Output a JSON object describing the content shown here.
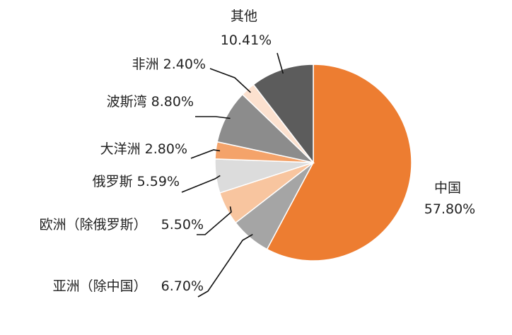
{
  "chart_data": {
    "type": "pie",
    "title": "",
    "start_angle_deg": 0,
    "direction": "clockwise",
    "slices": [
      {
        "label": "中国",
        "value_text": "57.80%",
        "value": 57.8,
        "color": "#ED7D31"
      },
      {
        "label": "亚洲（除中国）",
        "value_text": "6.70%",
        "value": 6.7,
        "color": "#A5A5A5"
      },
      {
        "label": "欧洲（除俄罗斯）",
        "value_text": "5.50%",
        "value": 5.5,
        "color": "#F8C59F"
      },
      {
        "label": "俄罗斯",
        "value_text": "5.59%",
        "value": 5.59,
        "color": "#DCDCDC"
      },
      {
        "label": "大洋洲",
        "value_text": "2.80%",
        "value": 2.8,
        "color": "#F4A36A"
      },
      {
        "label": "波斯湾",
        "value_text": "8.80%",
        "value": 8.8,
        "color": "#8C8C8C"
      },
      {
        "label": "非洲",
        "value_text": "2.40%",
        "value": 2.4,
        "color": "#FCE1CF"
      },
      {
        "label": "其他",
        "value_text": "10.41%",
        "value": 10.41,
        "color": "#5C5C5C"
      }
    ]
  }
}
